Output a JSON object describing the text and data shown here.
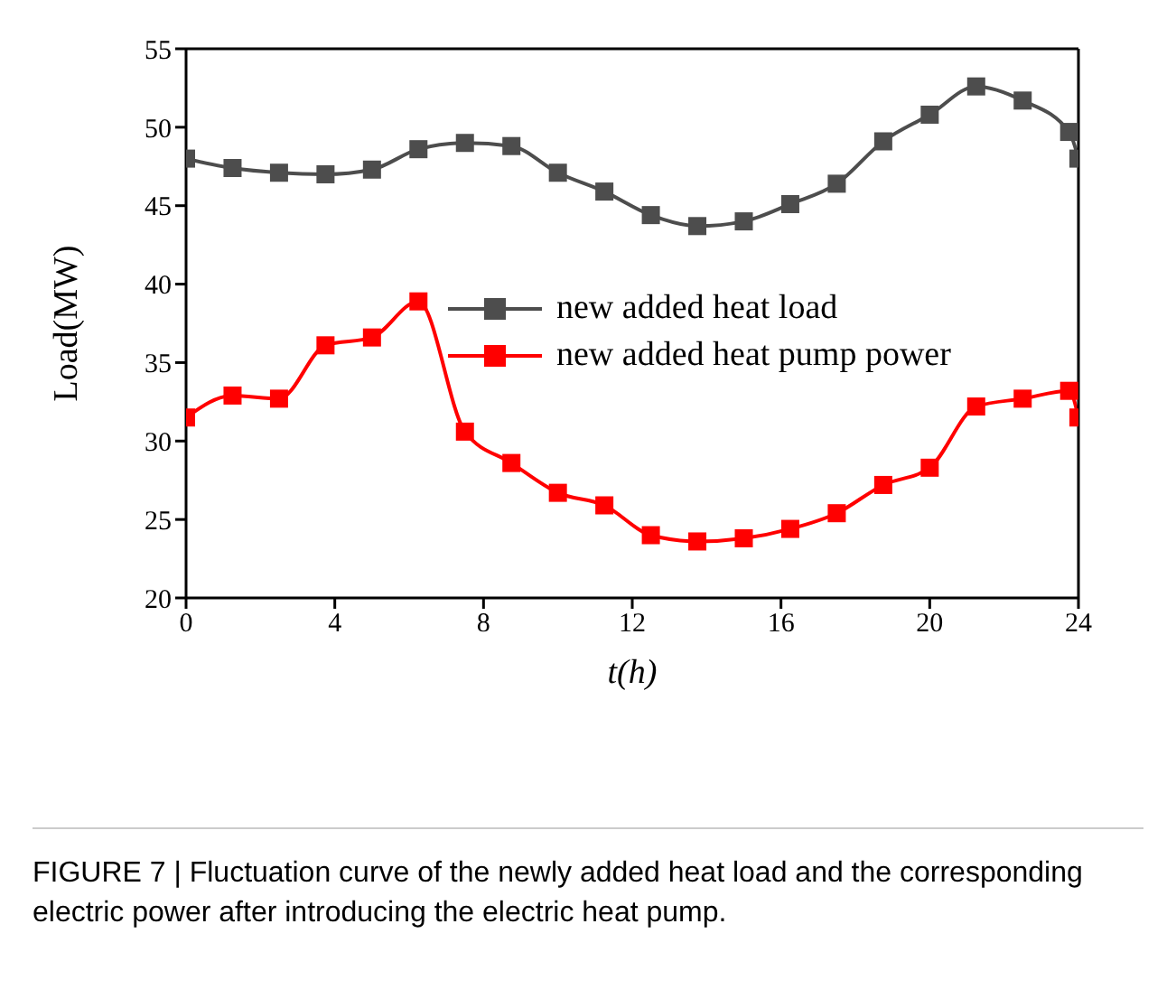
{
  "chart_data": {
    "type": "line",
    "xlabel": "t(h)",
    "ylabel": "Load(MW)",
    "x": [
      0,
      1.25,
      2.5,
      3.75,
      5,
      6.25,
      7.5,
      8.75,
      10,
      11.25,
      12.5,
      13.75,
      15,
      16.25,
      17.5,
      18.75,
      20,
      21.25,
      22.5,
      23.75,
      24
    ],
    "series": [
      {
        "name": "new added heat load",
        "color": "#4d4d4d",
        "values": [
          48.0,
          47.4,
          47.1,
          47.0,
          47.3,
          48.6,
          49.0,
          48.8,
          47.1,
          45.9,
          44.4,
          43.7,
          44.0,
          45.1,
          46.4,
          49.1,
          50.8,
          52.6,
          51.7,
          49.7,
          48.0
        ]
      },
      {
        "name": "new added heat pump power",
        "color": "#ff0000",
        "values": [
          31.5,
          32.9,
          32.7,
          36.1,
          36.6,
          38.9,
          30.6,
          28.6,
          26.7,
          25.9,
          24.0,
          23.6,
          23.8,
          24.4,
          25.4,
          27.2,
          28.3,
          32.2,
          32.7,
          33.2,
          31.5
        ]
      }
    ],
    "xlim": [
      0,
      24
    ],
    "xticks": [
      0,
      4,
      8,
      12,
      16,
      20,
      24
    ],
    "ylim": [
      20,
      55
    ],
    "yticks": [
      20,
      25,
      30,
      35,
      40,
      45,
      50,
      55
    ],
    "grid": false,
    "legend": "right",
    "marker": "square",
    "line_style": "solid",
    "annotations": [
      "FIGURE 7 | Fluctuation curve of the newly added heat load and the corresponding electric power after introducing the electric heat pump."
    ]
  }
}
